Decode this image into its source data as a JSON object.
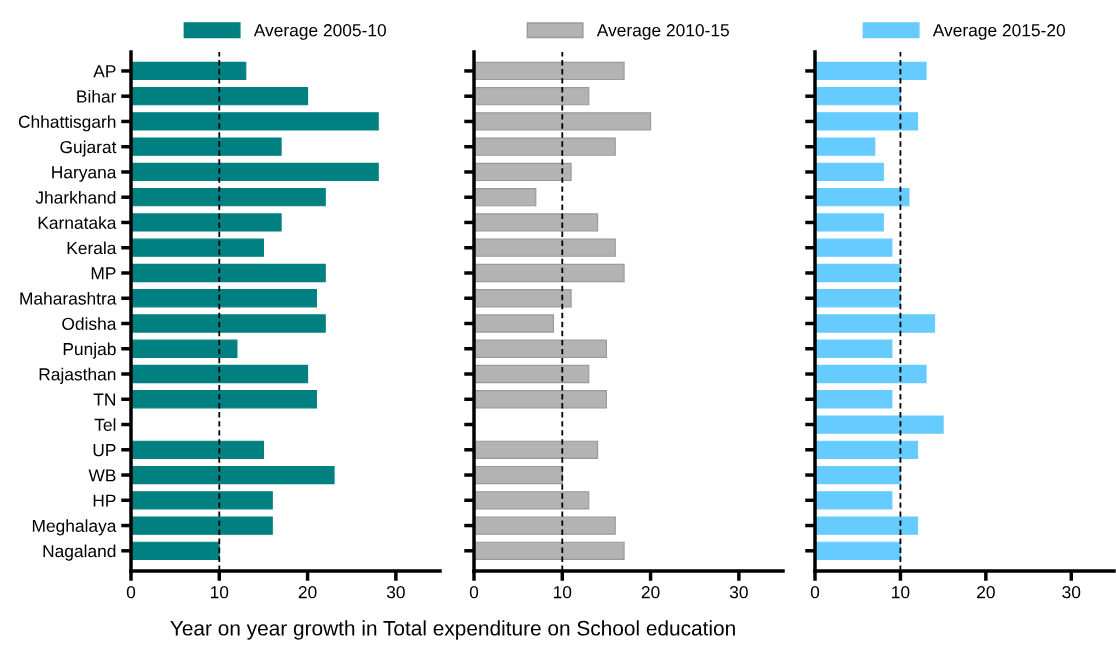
{
  "chart_data": [
    {
      "type": "bar",
      "orientation": "horizontal",
      "xlabel": "Year on year growth in Total expenditure on School education",
      "categories": [
        "AP",
        "Bihar",
        "Chhattisgarh",
        "Gujarat",
        "Haryana",
        "Jharkhand",
        "Karnataka",
        "Kerala",
        "MP",
        "Maharashtra",
        "Odisha",
        "Punjab",
        "Rajasthan",
        "TN",
        "Tel",
        "UP",
        "WB",
        "HP",
        "Meghalaya",
        "Nagaland"
      ],
      "series": [
        {
          "name": "Average 2005-10",
          "color": "#008080",
          "values": [
            13,
            20,
            28,
            17,
            28,
            22,
            17,
            15,
            22,
            21,
            22,
            12,
            20,
            21,
            null,
            15,
            23,
            16,
            16,
            10
          ]
        }
      ],
      "xlim": [
        0,
        35
      ],
      "xticks": [
        0,
        10,
        20,
        30
      ],
      "ref_lines": [
        {
          "axis": "x",
          "value": 10,
          "color": "#000000",
          "line_style": "dashed"
        }
      ],
      "legend": "top",
      "grid": false
    },
    {
      "type": "bar",
      "orientation": "horizontal",
      "categories": [
        null,
        null,
        null,
        null,
        null,
        null,
        null,
        null,
        null,
        null,
        null,
        null,
        null,
        null,
        null,
        null,
        null,
        null,
        null,
        null
      ],
      "series": [
        {
          "name": "Average 2010-15",
          "color": "#b3b3b3",
          "values": [
            17,
            13,
            20,
            16,
            11,
            7,
            14,
            16,
            17,
            11,
            9,
            15,
            13,
            15,
            null,
            14,
            10,
            13,
            16,
            17
          ]
        }
      ],
      "xlim": [
        0,
        35
      ],
      "xticks": [
        0,
        10,
        20,
        30
      ],
      "ref_lines": [
        {
          "axis": "x",
          "value": 10,
          "color": "#000000",
          "line_style": "dashed"
        }
      ],
      "legend": "top",
      "grid": false,
      "tick_labels": "x"
    },
    {
      "type": "bar",
      "orientation": "horizontal",
      "categories": [
        null,
        null,
        null,
        null,
        null,
        null,
        null,
        null,
        null,
        null,
        null,
        null,
        null,
        null,
        null,
        null,
        null,
        null,
        null,
        null
      ],
      "series": [
        {
          "name": "Average 2015-20",
          "color": "#66ccff",
          "values": [
            13,
            10,
            12,
            7,
            8,
            11,
            8,
            9,
            10,
            10,
            14,
            9,
            13,
            9,
            15,
            12,
            10,
            9,
            12,
            10
          ]
        }
      ],
      "xlim": [
        0,
        35
      ],
      "xticks": [
        0,
        10,
        20,
        30
      ],
      "ref_lines": [
        {
          "axis": "x",
          "value": 10,
          "color": "#000000",
          "line_style": "dashed"
        }
      ],
      "legend": "top",
      "grid": false,
      "tick_labels": "x"
    }
  ]
}
